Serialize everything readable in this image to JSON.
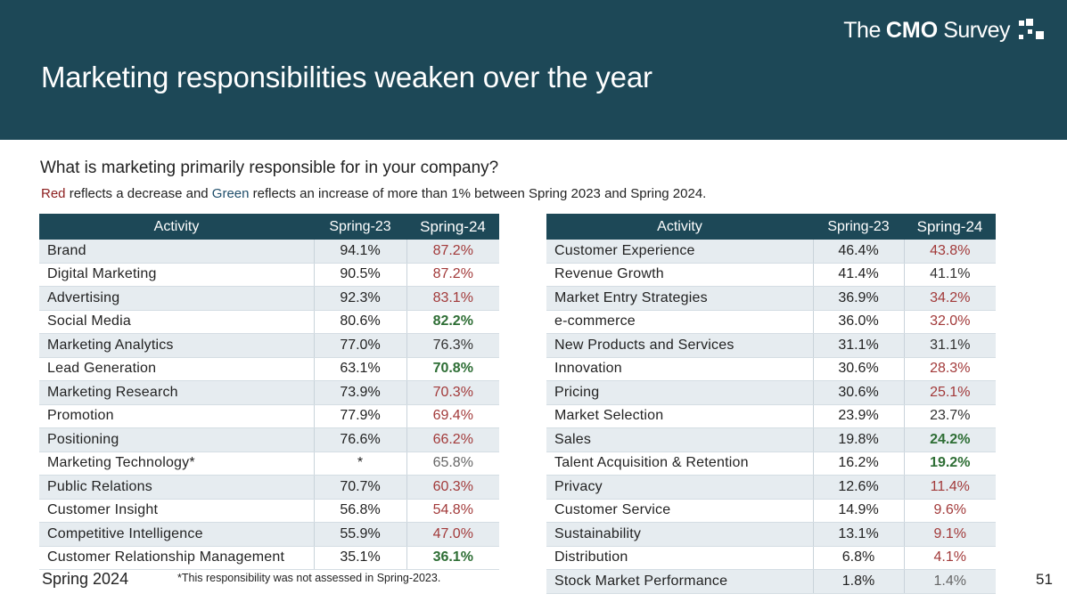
{
  "header": {
    "brand_pre": "The",
    "brand_bold": "CMO",
    "brand_post": "Survey",
    "title": "Marketing responsibilities weaken over the year"
  },
  "question": "What is marketing primarily responsible for in your company?",
  "legend": {
    "red_word": "Red",
    "mid_text": " reflects a decrease and ",
    "green_word": "Green",
    "end_text": " reflects an increase of more than 1% between Spring 2023 and Spring 2024."
  },
  "columns": {
    "activity": "Activity",
    "spring23": "Spring-23",
    "spring24": "Spring-24"
  },
  "left_table": [
    {
      "activity": "Brand",
      "s23": "94.1%",
      "s24": "87.2%",
      "change": "dec"
    },
    {
      "activity": "Digital Marketing",
      "s23": "90.5%",
      "s24": "87.2%",
      "change": "dec"
    },
    {
      "activity": "Advertising",
      "s23": "92.3%",
      "s24": "83.1%",
      "change": "dec"
    },
    {
      "activity": "Social Media",
      "s23": "80.6%",
      "s24": "82.2%",
      "change": "inc"
    },
    {
      "activity": "Marketing Analytics",
      "s23": "77.0%",
      "s24": "76.3%",
      "change": "same"
    },
    {
      "activity": "Lead Generation",
      "s23": "63.1%",
      "s24": "70.8%",
      "change": "inc"
    },
    {
      "activity": "Marketing Research",
      "s23": "73.9%",
      "s24": "70.3%",
      "change": "dec"
    },
    {
      "activity": "Promotion",
      "s23": "77.9%",
      "s24": "69.4%",
      "change": "dec"
    },
    {
      "activity": "Positioning",
      "s23": "76.6%",
      "s24": "66.2%",
      "change": "dec"
    },
    {
      "activity": "Marketing Technology*",
      "s23": "*",
      "s24": "65.8%",
      "change": "none"
    },
    {
      "activity": "Public Relations",
      "s23": "70.7%",
      "s24": "60.3%",
      "change": "dec"
    },
    {
      "activity": "Customer Insight",
      "s23": "56.8%",
      "s24": "54.8%",
      "change": "dec"
    },
    {
      "activity": "Competitive Intelligence",
      "s23": "55.9%",
      "s24": "47.0%",
      "change": "dec"
    },
    {
      "activity": "Customer Relationship Management",
      "s23": "35.1%",
      "s24": "36.1%",
      "change": "inc"
    }
  ],
  "right_table": [
    {
      "activity": "Customer Experience",
      "s23": "46.4%",
      "s24": "43.8%",
      "change": "dec"
    },
    {
      "activity": "Revenue Growth",
      "s23": "41.4%",
      "s24": "41.1%",
      "change": "same"
    },
    {
      "activity": "Market Entry Strategies",
      "s23": "36.9%",
      "s24": "34.2%",
      "change": "dec"
    },
    {
      "activity": "e-commerce",
      "s23": "36.0%",
      "s24": "32.0%",
      "change": "dec"
    },
    {
      "activity": "New Products and Services",
      "s23": "31.1%",
      "s24": "31.1%",
      "change": "same"
    },
    {
      "activity": "Innovation",
      "s23": "30.6%",
      "s24": "28.3%",
      "change": "dec"
    },
    {
      "activity": "Pricing",
      "s23": "30.6%",
      "s24": "25.1%",
      "change": "dec"
    },
    {
      "activity": "Market Selection",
      "s23": "23.9%",
      "s24": "23.7%",
      "change": "same"
    },
    {
      "activity": "Sales",
      "s23": "19.8%",
      "s24": "24.2%",
      "change": "inc"
    },
    {
      "activity": "Talent Acquisition & Retention",
      "s23": "16.2%",
      "s24": "19.2%",
      "change": "inc"
    },
    {
      "activity": "Privacy",
      "s23": "12.6%",
      "s24": "11.4%",
      "change": "dec"
    },
    {
      "activity": "Customer Service",
      "s23": "14.9%",
      "s24": "9.6%",
      "change": "dec"
    },
    {
      "activity": "Sustainability",
      "s23": "13.1%",
      "s24": "9.1%",
      "change": "dec"
    },
    {
      "activity": "Distribution",
      "s23": "6.8%",
      "s24": "4.1%",
      "change": "dec"
    },
    {
      "activity": "Stock Market Performance",
      "s23": "1.8%",
      "s24": "1.4%",
      "change": "none"
    }
  ],
  "colors": {
    "header_bg": "#1d4857",
    "decrease": "#a23a3a",
    "increase": "#2e6e35"
  },
  "footer": {
    "survey_date": "Spring 2024",
    "footnote": "*This responsibility was not assessed in Spring-2023.",
    "page_number": "51"
  }
}
